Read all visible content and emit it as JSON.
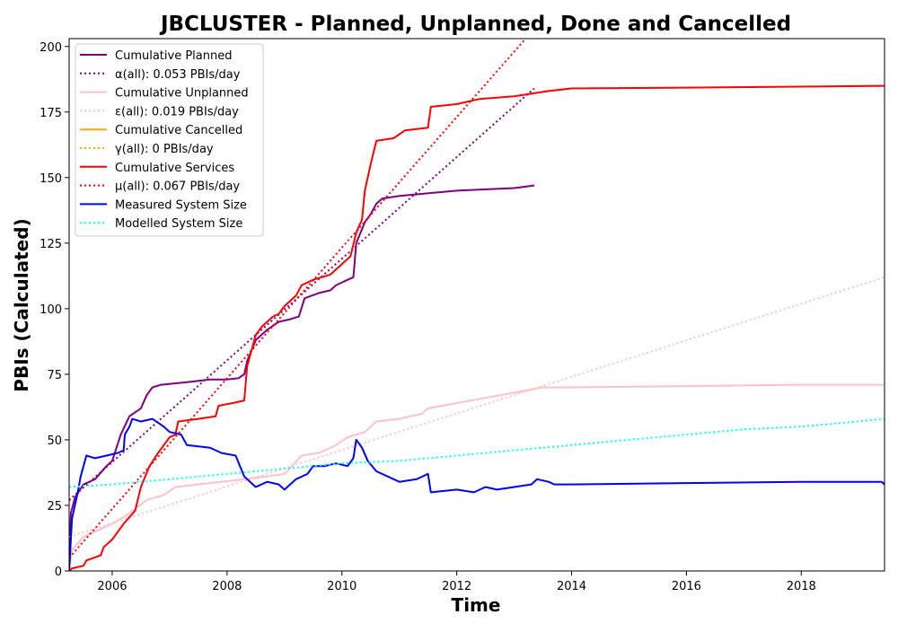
{
  "chart_data": {
    "type": "line",
    "title": "JBCLUSTER - Planned, Unplanned, Done  and Cancelled",
    "xlabel": "Time",
    "ylabel": "PBIs (Calculated)",
    "xlim": [
      2005.25,
      2019.45
    ],
    "ylim": [
      0,
      203
    ],
    "x_ticks": [
      2006,
      2008,
      2010,
      2012,
      2014,
      2016,
      2018
    ],
    "x_tick_labels": [
      "2006",
      "2008",
      "2010",
      "2012",
      "2014",
      "2016",
      "2018"
    ],
    "y_ticks": [
      0,
      25,
      50,
      75,
      100,
      125,
      150,
      175,
      200
    ],
    "y_tick_labels": [
      "0",
      "25",
      "50",
      "75",
      "100",
      "125",
      "150",
      "175",
      "200"
    ],
    "grid": false,
    "legend_position": "top-left",
    "series": [
      {
        "name": "Cumulative Planned",
        "color": "#800080",
        "style": "solid",
        "points": [
          [
            2005.25,
            0
          ],
          [
            2005.28,
            22
          ],
          [
            2005.35,
            28
          ],
          [
            2005.5,
            33
          ],
          [
            2005.7,
            35
          ],
          [
            2005.9,
            40
          ],
          [
            2006.0,
            42
          ],
          [
            2006.15,
            52
          ],
          [
            2006.3,
            59
          ],
          [
            2006.5,
            62
          ],
          [
            2006.6,
            67
          ],
          [
            2006.7,
            70
          ],
          [
            2006.85,
            71
          ],
          [
            2007.3,
            72
          ],
          [
            2007.7,
            73
          ],
          [
            2008.0,
            73
          ],
          [
            2008.2,
            73.5
          ],
          [
            2008.3,
            75
          ],
          [
            2008.35,
            80
          ],
          [
            2008.5,
            88
          ],
          [
            2008.7,
            92
          ],
          [
            2008.9,
            95
          ],
          [
            2009.1,
            96
          ],
          [
            2009.25,
            97
          ],
          [
            2009.35,
            104
          ],
          [
            2009.6,
            106
          ],
          [
            2009.8,
            107
          ],
          [
            2009.9,
            109
          ],
          [
            2010.1,
            111
          ],
          [
            2010.2,
            112
          ],
          [
            2010.25,
            125
          ],
          [
            2010.4,
            133
          ],
          [
            2010.5,
            136
          ],
          [
            2010.6,
            140
          ],
          [
            2010.7,
            142
          ],
          [
            2011.0,
            143
          ],
          [
            2012.0,
            145
          ],
          [
            2013.0,
            146
          ],
          [
            2013.35,
            147
          ]
        ]
      },
      {
        "name": "α(all): 0.053 PBIs/day",
        "color": "#800080",
        "style": "dotted",
        "points": [
          [
            2005.25,
            27
          ],
          [
            2013.35,
            184
          ]
        ]
      },
      {
        "name": "Cumulative Unplanned",
        "color": "#ffc0cb",
        "style": "solid",
        "points": [
          [
            2005.25,
            0
          ],
          [
            2005.3,
            8
          ],
          [
            2005.5,
            13
          ],
          [
            2005.8,
            16
          ],
          [
            2006.0,
            18
          ],
          [
            2006.3,
            22
          ],
          [
            2006.6,
            27
          ],
          [
            2006.9,
            29
          ],
          [
            2007.1,
            32
          ],
          [
            2007.5,
            33
          ],
          [
            2007.9,
            34
          ],
          [
            2008.3,
            35
          ],
          [
            2008.7,
            36
          ],
          [
            2009.0,
            37
          ],
          [
            2009.3,
            44
          ],
          [
            2009.6,
            45
          ],
          [
            2009.9,
            48
          ],
          [
            2010.1,
            51
          ],
          [
            2010.4,
            53
          ],
          [
            2010.6,
            57
          ],
          [
            2011.0,
            58
          ],
          [
            2011.4,
            60
          ],
          [
            2011.5,
            62
          ],
          [
            2012.0,
            64
          ],
          [
            2012.5,
            66
          ],
          [
            2013.0,
            68
          ],
          [
            2013.5,
            70
          ],
          [
            2014.0,
            70
          ],
          [
            2016.0,
            70.5
          ],
          [
            2018.0,
            71
          ],
          [
            2019.45,
            71
          ]
        ]
      },
      {
        "name": "ε(all): 0.019 PBIs/day",
        "color": "#ffc0cb",
        "style": "dotted",
        "points": [
          [
            2005.25,
            13
          ],
          [
            2019.45,
            112
          ]
        ]
      },
      {
        "name": "Cumulative Cancelled",
        "color": "#ffa500",
        "style": "solid",
        "points": []
      },
      {
        "name": "γ(all): 0 PBIs/day",
        "color": "#ffa500",
        "style": "dotted",
        "points": []
      },
      {
        "name": "Cumulative Services",
        "color": "#ff0000",
        "style": "solid",
        "points": [
          [
            2005.25,
            0
          ],
          [
            2005.3,
            1
          ],
          [
            2005.5,
            2
          ],
          [
            2005.55,
            4
          ],
          [
            2005.8,
            6
          ],
          [
            2005.85,
            9
          ],
          [
            2006.0,
            12
          ],
          [
            2006.2,
            18
          ],
          [
            2006.4,
            23
          ],
          [
            2006.5,
            32
          ],
          [
            2006.65,
            40
          ],
          [
            2006.8,
            45
          ],
          [
            2006.9,
            48
          ],
          [
            2007.0,
            51
          ],
          [
            2007.1,
            52
          ],
          [
            2007.15,
            57
          ],
          [
            2007.5,
            58
          ],
          [
            2007.8,
            59
          ],
          [
            2007.85,
            63
          ],
          [
            2008.1,
            64
          ],
          [
            2008.3,
            65
          ],
          [
            2008.35,
            78
          ],
          [
            2008.5,
            90
          ],
          [
            2008.6,
            93
          ],
          [
            2008.8,
            97
          ],
          [
            2008.9,
            98
          ],
          [
            2009.0,
            101
          ],
          [
            2009.2,
            105
          ],
          [
            2009.3,
            109
          ],
          [
            2009.5,
            111
          ],
          [
            2009.8,
            113
          ],
          [
            2010.0,
            117
          ],
          [
            2010.15,
            120
          ],
          [
            2010.25,
            129
          ],
          [
            2010.35,
            134
          ],
          [
            2010.4,
            145
          ],
          [
            2010.5,
            155
          ],
          [
            2010.6,
            164
          ],
          [
            2010.9,
            165
          ],
          [
            2011.1,
            168
          ],
          [
            2011.5,
            169
          ],
          [
            2011.55,
            177
          ],
          [
            2012.0,
            178
          ],
          [
            2012.4,
            180
          ],
          [
            2013.0,
            181
          ],
          [
            2013.6,
            183
          ],
          [
            2014.0,
            184
          ],
          [
            2016.0,
            184.3
          ],
          [
            2018.0,
            184.7
          ],
          [
            2019.45,
            185
          ]
        ]
      },
      {
        "name": "μ(all): 0.067 PBIs/day",
        "color": "#ff0000",
        "style": "dotted",
        "points": [
          [
            2005.25,
            5
          ],
          [
            2013.2,
            203
          ]
        ]
      },
      {
        "name": "Measured System Size",
        "color": "#0000ff",
        "style": "solid",
        "points": [
          [
            2005.25,
            0
          ],
          [
            2005.3,
            20
          ],
          [
            2005.4,
            30
          ],
          [
            2005.45,
            36
          ],
          [
            2005.55,
            44
          ],
          [
            2005.7,
            43
          ],
          [
            2005.9,
            44
          ],
          [
            2006.1,
            45
          ],
          [
            2006.2,
            46
          ],
          [
            2006.22,
            52
          ],
          [
            2006.3,
            55
          ],
          [
            2006.35,
            58
          ],
          [
            2006.5,
            57
          ],
          [
            2006.7,
            58
          ],
          [
            2006.9,
            55
          ],
          [
            2007.0,
            53
          ],
          [
            2007.2,
            52
          ],
          [
            2007.3,
            48
          ],
          [
            2007.7,
            47
          ],
          [
            2007.9,
            45
          ],
          [
            2008.15,
            44
          ],
          [
            2008.3,
            36
          ],
          [
            2008.5,
            32
          ],
          [
            2008.7,
            34
          ],
          [
            2008.9,
            33
          ],
          [
            2009.0,
            31
          ],
          [
            2009.2,
            35
          ],
          [
            2009.4,
            37
          ],
          [
            2009.5,
            40
          ],
          [
            2009.7,
            40
          ],
          [
            2009.9,
            41
          ],
          [
            2010.1,
            40
          ],
          [
            2010.2,
            43
          ],
          [
            2010.25,
            50
          ],
          [
            2010.35,
            47
          ],
          [
            2010.45,
            42
          ],
          [
            2010.6,
            38
          ],
          [
            2010.8,
            36
          ],
          [
            2011.0,
            34
          ],
          [
            2011.3,
            35
          ],
          [
            2011.5,
            37
          ],
          [
            2011.55,
            30
          ],
          [
            2012.0,
            31
          ],
          [
            2012.3,
            30
          ],
          [
            2012.5,
            32
          ],
          [
            2012.7,
            31
          ],
          [
            2013.0,
            32
          ],
          [
            2013.3,
            33
          ],
          [
            2013.4,
            35
          ],
          [
            2013.6,
            34
          ],
          [
            2013.7,
            33
          ],
          [
            2014.0,
            33
          ],
          [
            2016.0,
            33.5
          ],
          [
            2018.0,
            34
          ],
          [
            2019.4,
            34
          ],
          [
            2019.45,
            33
          ]
        ]
      },
      {
        "name": "Modelled System Size",
        "color": "#00ffff",
        "style": "dotted",
        "points": [
          [
            2005.25,
            32
          ],
          [
            2006.0,
            33
          ],
          [
            2007.0,
            35
          ],
          [
            2008.0,
            37
          ],
          [
            2009.0,
            39
          ],
          [
            2010.0,
            41
          ],
          [
            2011.0,
            42
          ],
          [
            2012.0,
            44
          ],
          [
            2013.0,
            46
          ],
          [
            2014.0,
            48
          ],
          [
            2015.0,
            50
          ],
          [
            2016.0,
            52
          ],
          [
            2017.0,
            54
          ],
          [
            2018.0,
            55
          ],
          [
            2019.45,
            58
          ]
        ]
      }
    ]
  }
}
